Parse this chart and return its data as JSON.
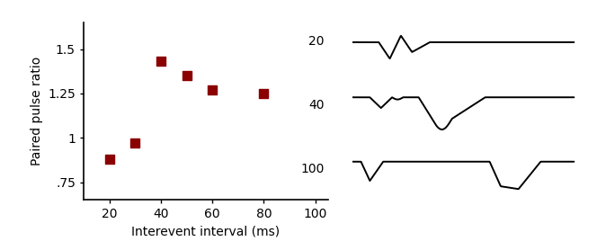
{
  "scatter_x": [
    20,
    30,
    40,
    50,
    60,
    80
  ],
  "scatter_y": [
    0.88,
    0.97,
    1.43,
    1.35,
    1.27,
    1.25
  ],
  "scatter_color": "#8B0000",
  "marker": "s",
  "marker_size": 45,
  "xlabel": "Interevent interval (ms)",
  "ylabel": "Paired pulse ratio",
  "yticks": [
    0.75,
    1.0,
    1.25,
    1.5
  ],
  "yticklabels": [
    ".75",
    "1",
    "1.25",
    "1.5"
  ],
  "xticks": [
    20,
    40,
    60,
    80,
    100
  ],
  "xlim": [
    10,
    105
  ],
  "ylim": [
    0.65,
    1.65
  ],
  "trace_labels": [
    "20",
    "40",
    "100"
  ],
  "bg_color": "#ffffff",
  "axis_color": "#000000",
  "label_color": "#000000",
  "label_fontsize": 10,
  "tick_fontsize": 10
}
